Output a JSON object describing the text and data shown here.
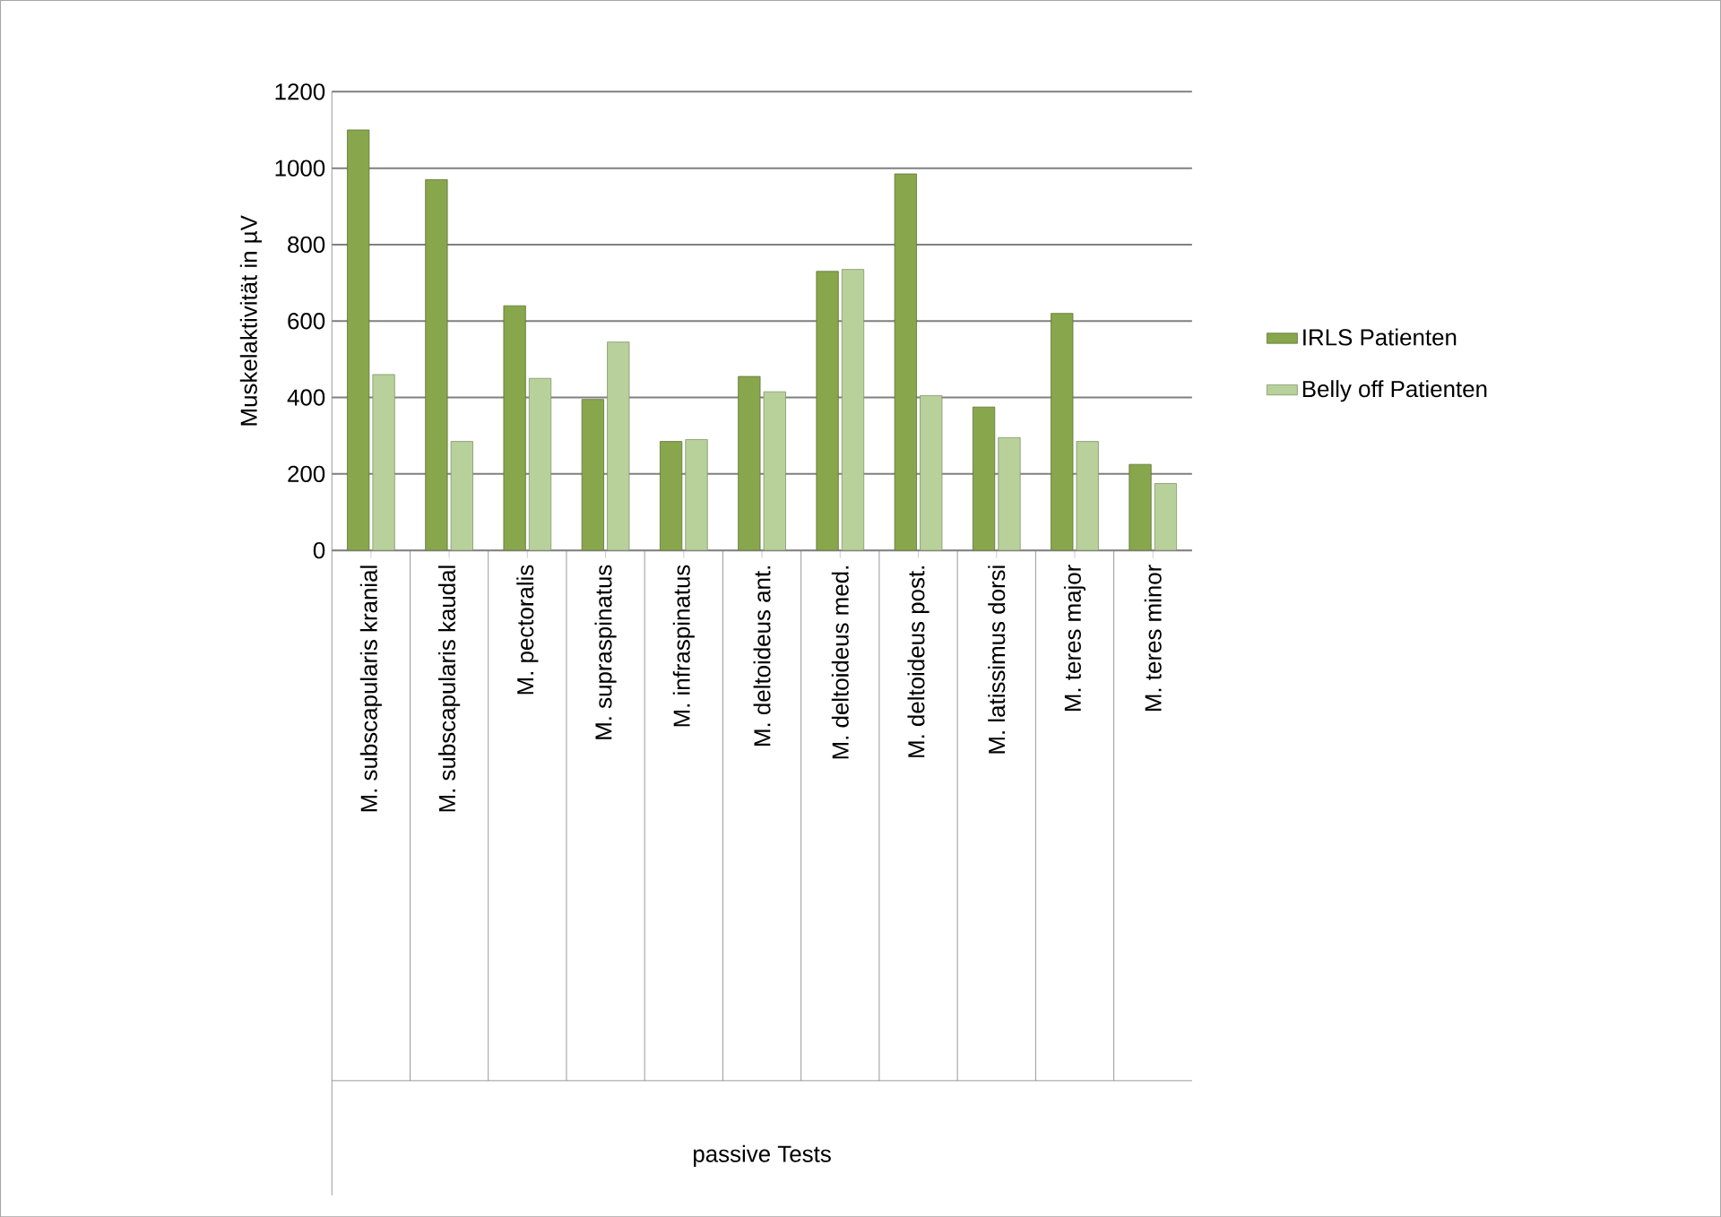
{
  "chart_data": {
    "type": "bar",
    "ylabel": "Muskelaktivität in µV",
    "annotations": [
      "passive Tests"
    ],
    "categories": [
      "M. subscapularis kranial",
      "M. subscapularis kaudal",
      "M. pectoralis",
      "M. supraspinatus",
      "M. infraspinatus",
      "M. deltoideus ant.",
      "M. deltoideus med.",
      "M. deltoideus post.",
      "M. latissimus dorsi",
      "M. teres major",
      "M. teres minor"
    ],
    "series": [
      {
        "name": "IRLS Patienten",
        "color": "#88a64c",
        "values": [
          1100,
          970,
          640,
          395,
          285,
          455,
          730,
          985,
          375,
          620,
          225
        ]
      },
      {
        "name": "Belly off Patienten",
        "color": "#b8d19a",
        "values": [
          460,
          285,
          450,
          545,
          290,
          415,
          735,
          405,
          295,
          285,
          175
        ]
      }
    ],
    "ylim": [
      0,
      1200
    ],
    "yticks": [
      0,
      200,
      400,
      600,
      800,
      1000,
      1200
    ],
    "grid": "y",
    "legend": "right"
  }
}
